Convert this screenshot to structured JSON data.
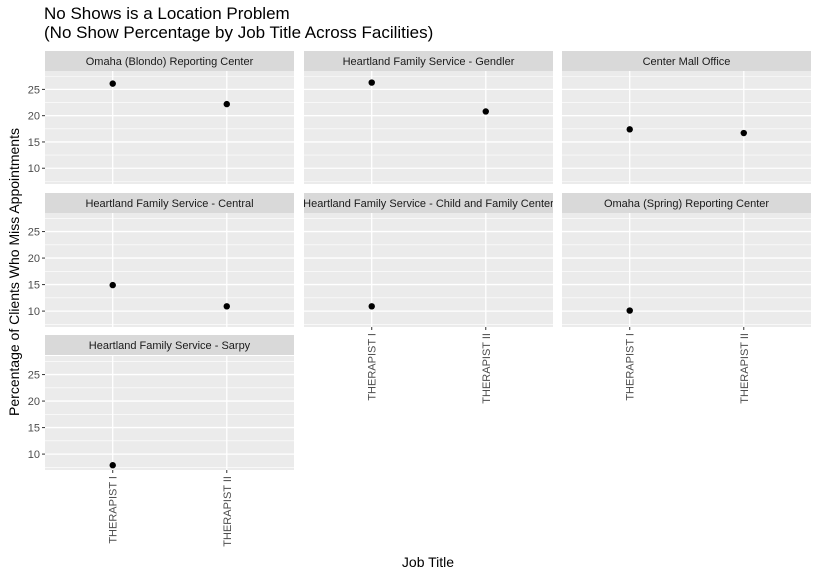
{
  "chart_data": {
    "type": "scatter",
    "title": "No Shows is a Location Problem",
    "subtitle": "(No Show Percentage by Job Title Across Facilities)",
    "xlabel": "Job Title",
    "ylabel": "Percentage of Clients Who Miss Appointments",
    "categories": [
      "THERAPIST I",
      "THERAPIST II"
    ],
    "ylim": [
      7,
      28.5
    ],
    "yticks": [
      10,
      15,
      20,
      25
    ],
    "grid": true,
    "colors": {
      "panel_bg": "#ebebeb",
      "strip_bg": "#d9d9d9",
      "grid": "#ffffff",
      "point": "#000000",
      "tick_text": "#4d4d4d"
    },
    "facets": [
      {
        "label": "Omaha (Blondo) Reporting Center",
        "values": [
          26.1,
          22.2
        ]
      },
      {
        "label": "Heartland Family Service - Gendler",
        "values": [
          26.3,
          20.8
        ]
      },
      {
        "label": "Center Mall Office",
        "values": [
          17.4,
          16.7
        ]
      },
      {
        "label": "Heartland Family Service - Central",
        "values": [
          14.9,
          10.9
        ]
      },
      {
        "label": "Heartland Family Service - Child and Family Center",
        "values": [
          10.9,
          null
        ]
      },
      {
        "label": "Omaha (Spring) Reporting Center",
        "values": [
          10.1,
          null
        ]
      },
      {
        "label": "Heartland Family Service - Sarpy",
        "values": [
          7.9,
          null
        ]
      }
    ]
  }
}
